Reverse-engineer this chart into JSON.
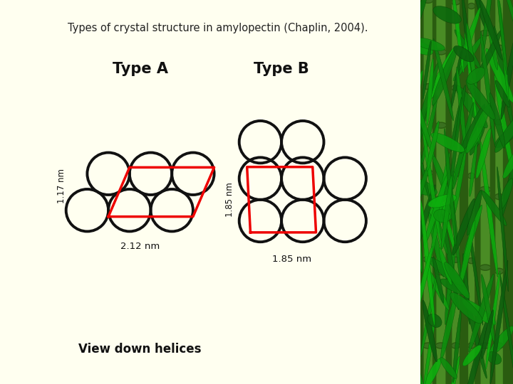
{
  "bg_color": "#FFFFF0",
  "title_text": "Types of crystal structure in amylopectin (Chaplin, 2004).",
  "title_color": "#222222",
  "title_fontsize": 10.5,
  "typeA_label": "Type A",
  "typeB_label": "Type B",
  "sub_label_A": "View down helices",
  "sub_label_B": "1.85 nm",
  "dim_label_A_horiz": "2.12 nm",
  "dim_label_A_vert": "1.17 nm",
  "dim_label_B_vert": "1.85 nm",
  "circle_edge_color": "#111111",
  "circle_lw": 2.8,
  "red_color": "#ee0000",
  "red_lw": 2.5,
  "bamboo_bg": "#2d6b1a"
}
